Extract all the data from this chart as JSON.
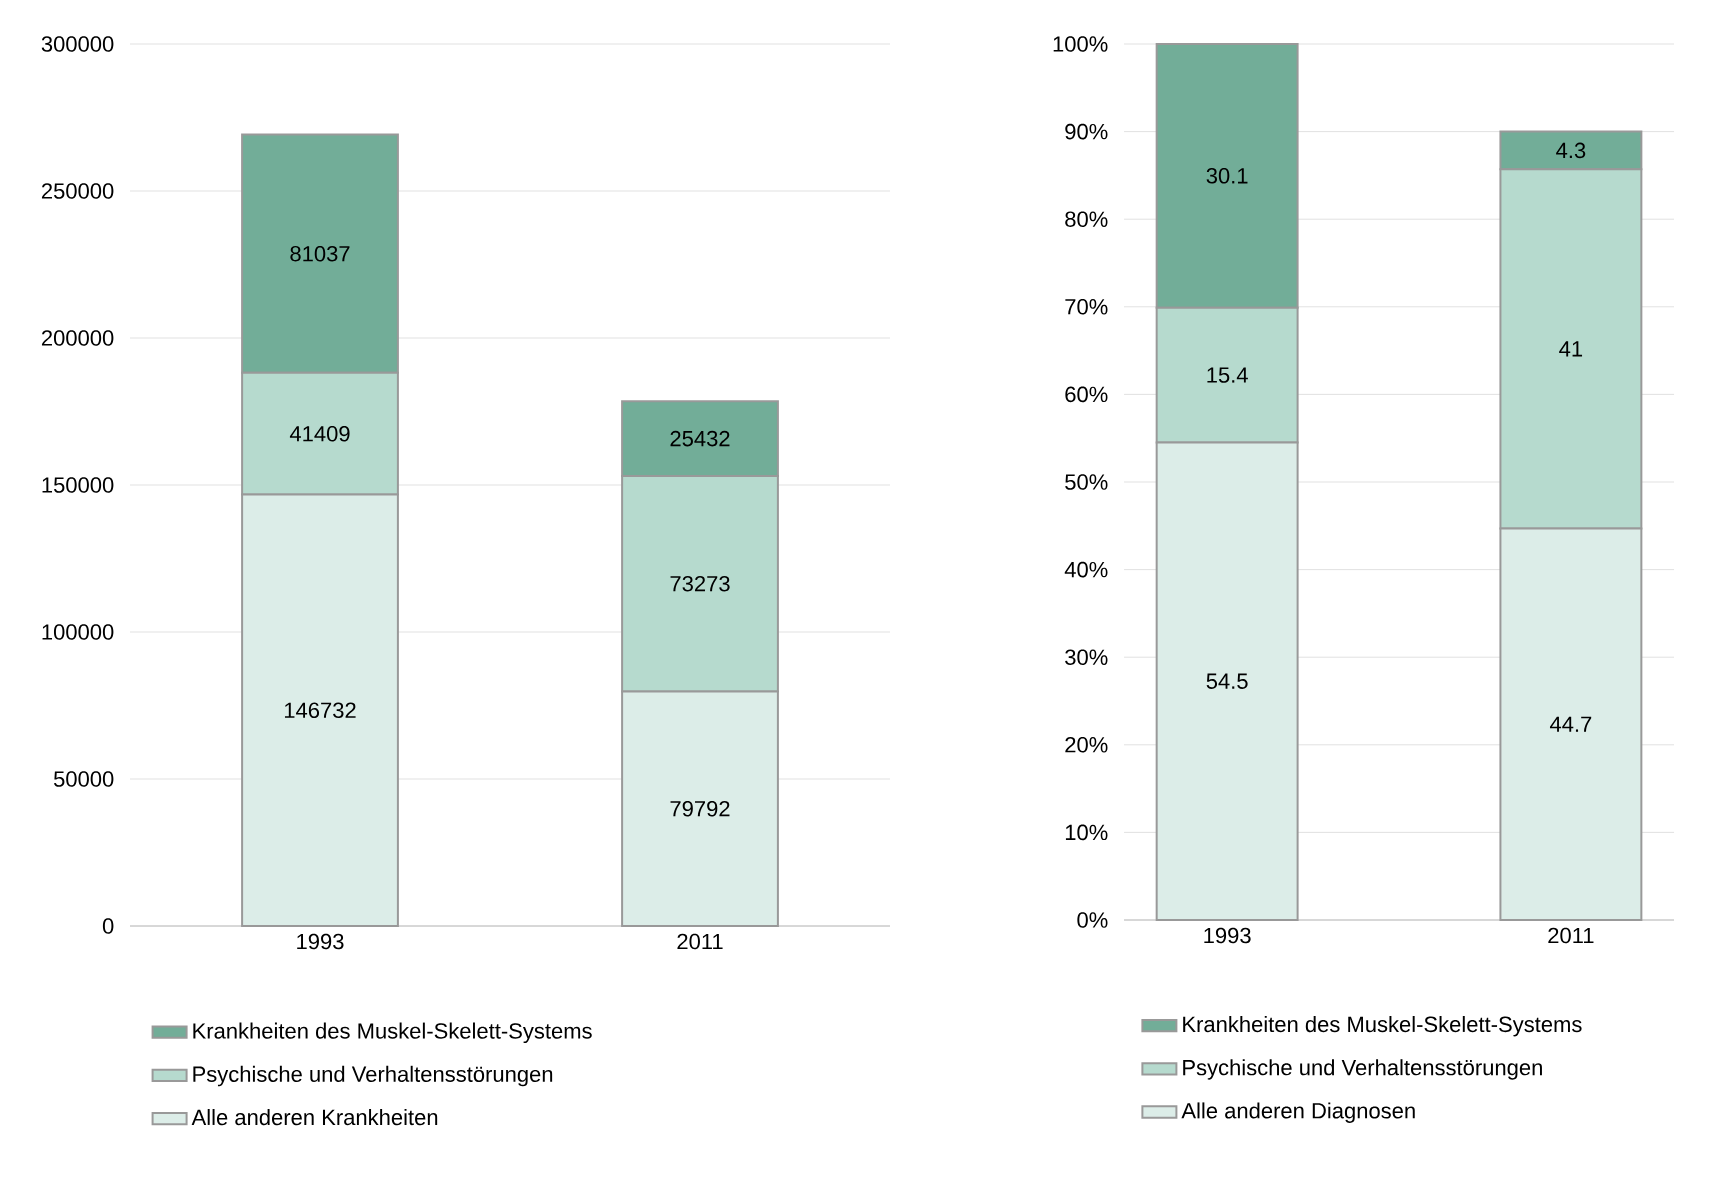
{
  "chart_data": [
    {
      "type": "bar",
      "stacked": true,
      "categories": [
        "1993",
        "2011"
      ],
      "ylim": [
        0,
        300000
      ],
      "yticks": [
        0,
        50000,
        100000,
        150000,
        200000,
        250000,
        300000
      ],
      "grid": "y",
      "legend": "bottom",
      "data_labels": true,
      "series": [
        {
          "name": "Alle anderen Krankheiten",
          "color": "#dcede8",
          "values": [
            146732,
            79792
          ]
        },
        {
          "name": "Psychische und Verhaltensstörungen",
          "color": "#b6dace",
          "values": [
            41409,
            73273
          ]
        },
        {
          "name": "Krankheiten des Muskel-Skelett-Systems",
          "color": "#72ad98",
          "values": [
            81037,
            25432
          ]
        }
      ]
    },
    {
      "type": "bar",
      "stacked": true,
      "categories": [
        "1993",
        "2011"
      ],
      "ylim": [
        0,
        100
      ],
      "yticks": [
        {
          "value": 0,
          "label": "0%"
        },
        {
          "value": 10,
          "label": "10%"
        },
        {
          "value": 20,
          "label": "20%"
        },
        {
          "value": 30,
          "label": "30%"
        },
        {
          "value": 40,
          "label": "40%"
        },
        {
          "value": 50,
          "label": "50%"
        },
        {
          "value": 60,
          "label": "60%"
        },
        {
          "value": 70,
          "label": "70%"
        },
        {
          "value": 80,
          "label": "80%"
        },
        {
          "value": 90,
          "label": "90%"
        },
        {
          "value": 100,
          "label": "100%"
        }
      ],
      "grid": "y",
      "legend": "bottom",
      "data_labels": true,
      "series": [
        {
          "name": "Alle anderen Diagnosen",
          "color": "#dcede8",
          "values": [
            54.5,
            44.7
          ]
        },
        {
          "name": "Psychische und Verhaltensstörungen",
          "color": "#b6dace",
          "values": [
            15.4,
            41
          ]
        },
        {
          "name": "Krankheiten des Muskel-Skelett-Systems",
          "color": "#72ad98",
          "values": [
            30.1,
            4.3
          ]
        }
      ]
    }
  ]
}
